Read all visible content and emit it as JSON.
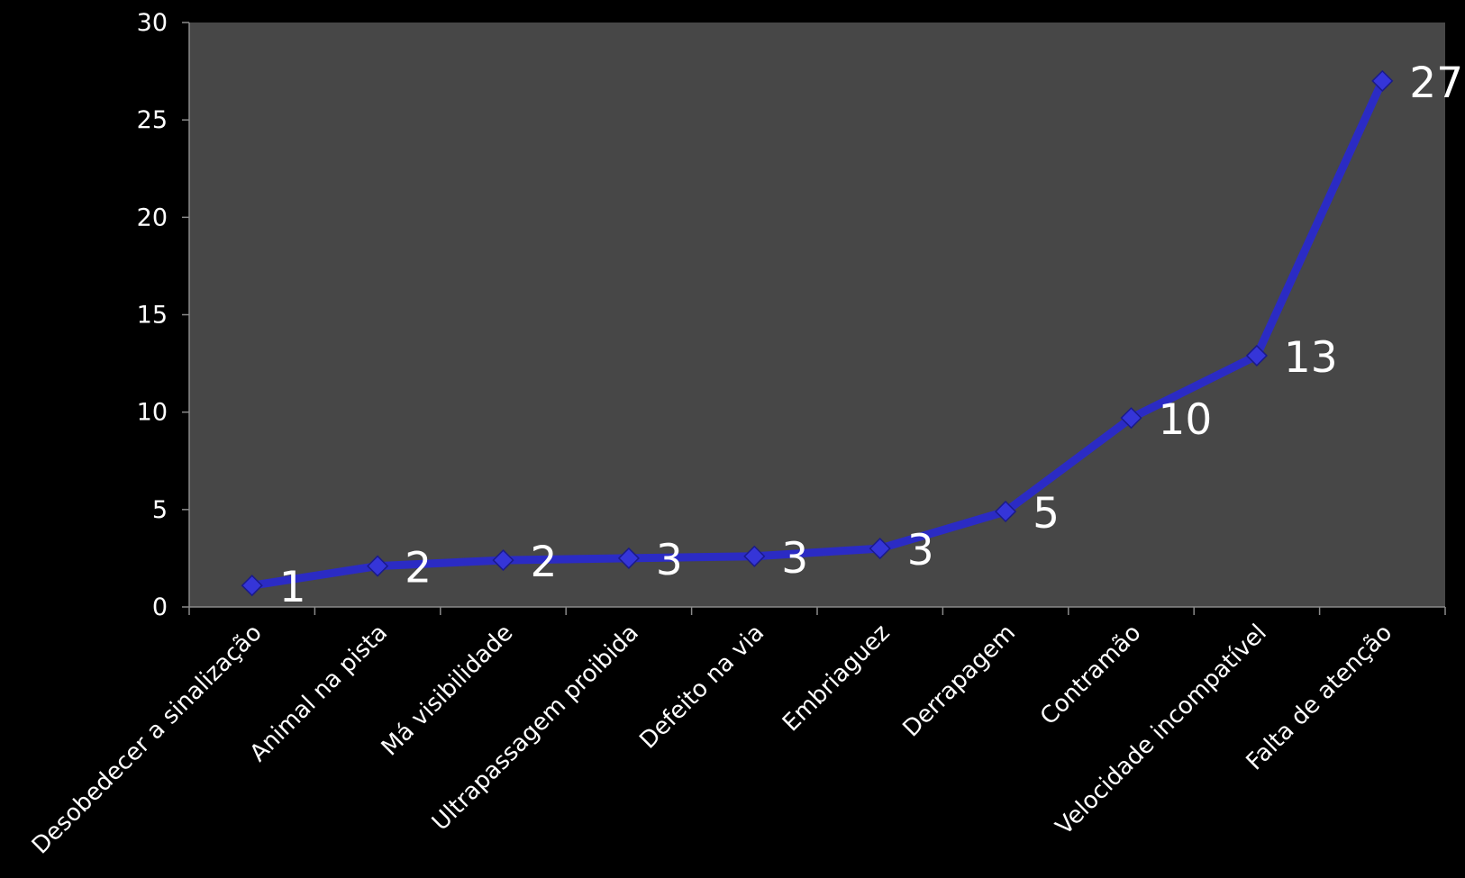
{
  "chart_data": {
    "type": "line",
    "categories": [
      "Desobedecer a sinalização",
      "Animal na pista",
      "Má visibilidade",
      "Ultrapassagem proibida",
      "Defeito na via",
      "Embriaguez",
      "Derrapagem",
      "Contramão",
      "Velocidade incompatível",
      "Falta de atenção"
    ],
    "values": [
      1.1,
      2.1,
      2.4,
      2.5,
      2.6,
      3.0,
      4.9,
      9.7,
      12.9,
      27.0
    ],
    "data_labels": [
      "1",
      "2",
      "2",
      "3",
      "3",
      "3",
      "5",
      "10",
      "13",
      "27"
    ],
    "ylim": [
      0,
      30
    ],
    "yticks": [
      "0",
      "5",
      "10",
      "15",
      "20",
      "25",
      "30"
    ],
    "title": "",
    "xlabel": "",
    "ylabel": "",
    "grid": false,
    "legend": "none",
    "colors": {
      "background": "#000000",
      "plot_area": "#474747",
      "series": "#2b2bc4",
      "marker": "#3535d8",
      "text": "#ffffff",
      "axis": "#8a8a8a"
    }
  }
}
